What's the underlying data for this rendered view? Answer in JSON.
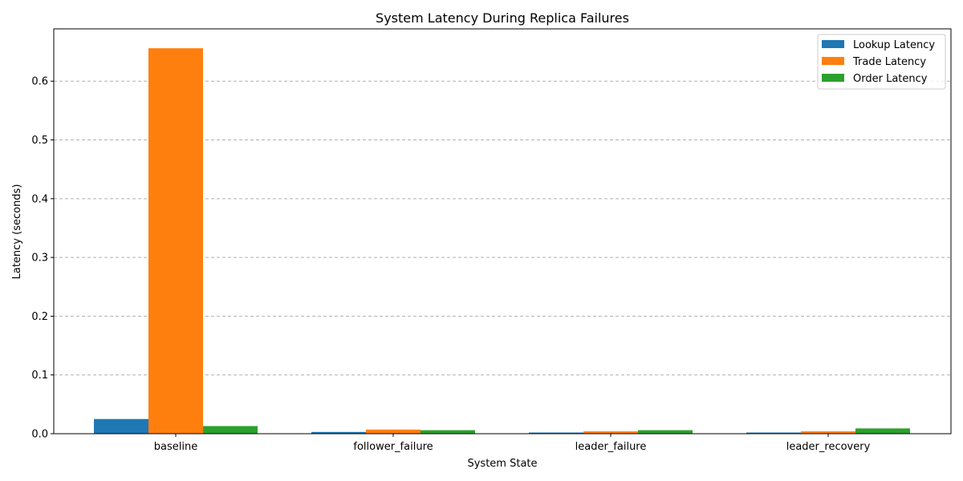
{
  "chart_data": {
    "type": "bar",
    "title": "System Latency During Replica Failures",
    "xlabel": "System State",
    "ylabel": "Latency (seconds)",
    "categories": [
      "baseline",
      "follower_failure",
      "leader_failure",
      "leader_recovery"
    ],
    "series": [
      {
        "name": "Lookup Latency",
        "color": "#1f77b4",
        "values": [
          0.025,
          0.003,
          0.002,
          0.002
        ]
      },
      {
        "name": "Trade Latency",
        "color": "#ff7f0e",
        "values": [
          0.656,
          0.007,
          0.004,
          0.004
        ]
      },
      {
        "name": "Order Latency",
        "color": "#2ca02c",
        "values": [
          0.013,
          0.006,
          0.006,
          0.009
        ]
      }
    ],
    "ylim": [
      0,
      0.689
    ],
    "yticks": [
      "0.0",
      "0.1",
      "0.2",
      "0.3",
      "0.4",
      "0.5",
      "0.6"
    ],
    "ytick_values": [
      0,
      0.1,
      0.2,
      0.3,
      0.4,
      0.5,
      0.6
    ],
    "grid": "y-dashed",
    "legend_position": "top-right"
  }
}
